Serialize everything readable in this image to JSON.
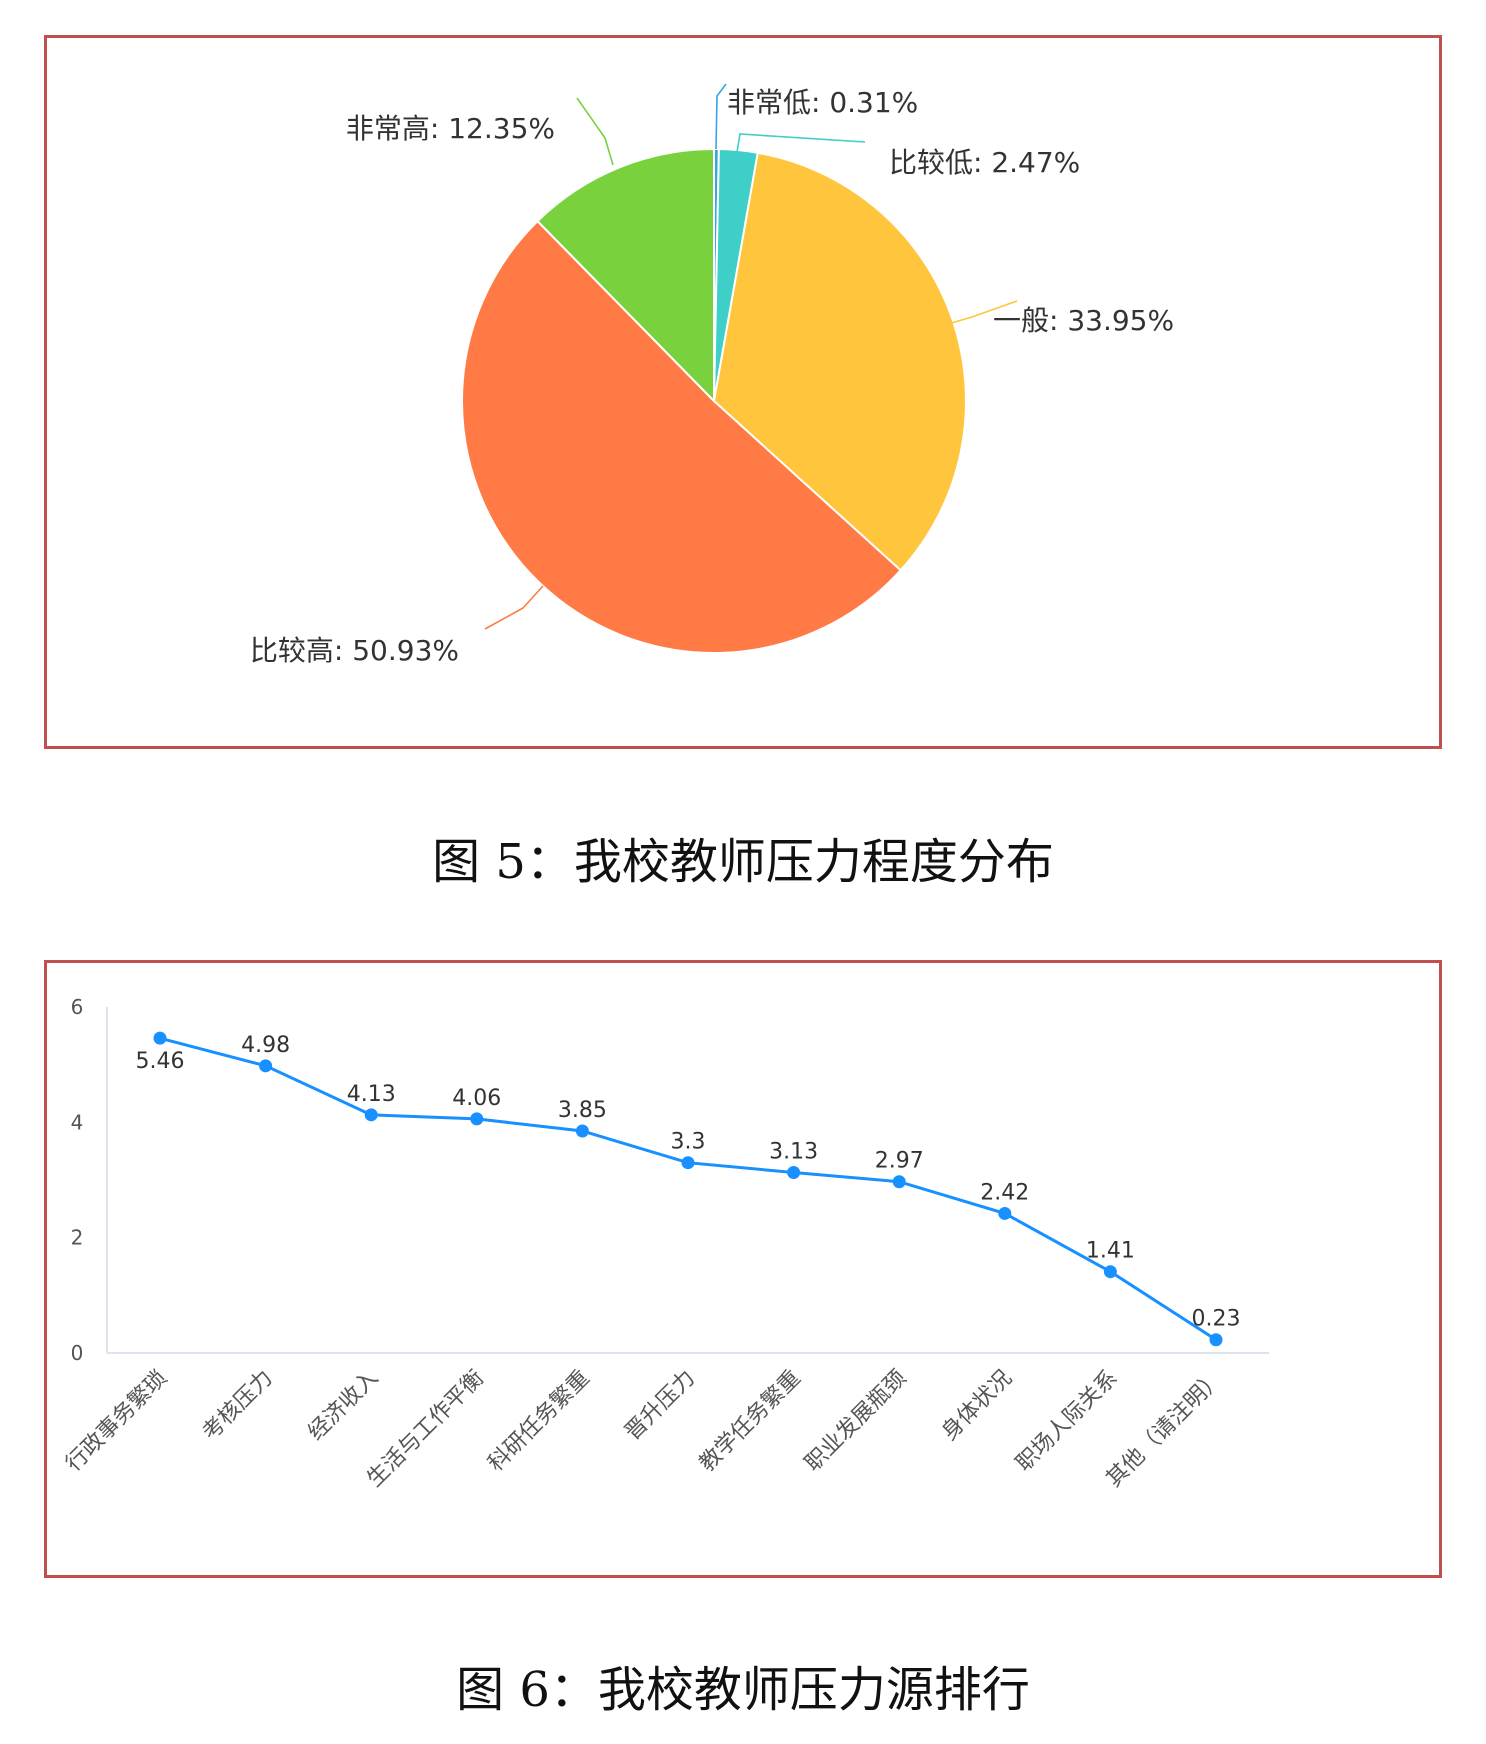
{
  "figure5": {
    "caption": "图 5：我校教师压力程度分布",
    "chart_data": {
      "type": "pie",
      "slices": [
        {
          "name": "非常低",
          "value": 0.31,
          "label": "非常低: 0.31%",
          "color": "#3aa3e3"
        },
        {
          "name": "比较低",
          "value": 2.47,
          "label": "比较低: 2.47%",
          "color": "#3ecfc9"
        },
        {
          "name": "一般",
          "value": 33.95,
          "label": "一般: 33.95%",
          "color": "#ffc53d"
        },
        {
          "name": "比较高",
          "value": 50.93,
          "label": "比较高: 50.93%",
          "color": "#ff7a45"
        },
        {
          "name": "非常高",
          "value": 12.35,
          "label": "非常高: 12.35%",
          "color": "#7ad13e"
        }
      ]
    }
  },
  "figure6": {
    "caption": "图 6：我校教师压力源排行",
    "chart_data": {
      "type": "line",
      "categories": [
        "行政事务繁琐",
        "考核压力",
        "经济收入",
        "生活与工作平衡",
        "科研任务繁重",
        "晋升压力",
        "教学任务繁重",
        "职业发展瓶颈",
        "身体状况",
        "职场人际关系",
        "其他（请注明）"
      ],
      "values": [
        5.46,
        4.98,
        4.13,
        4.06,
        3.85,
        3.3,
        3.13,
        2.97,
        2.42,
        1.41,
        0.23
      ],
      "value_labels": [
        "5.46",
        "4.98",
        "4.13",
        "4.06",
        "3.85",
        "3.3",
        "3.13",
        "2.97",
        "2.42",
        "1.41",
        "0.23"
      ],
      "ylim": [
        0,
        6
      ],
      "yticks": [
        "0",
        "2",
        "4",
        "6"
      ],
      "color": "#1890ff",
      "grid": false
    }
  }
}
